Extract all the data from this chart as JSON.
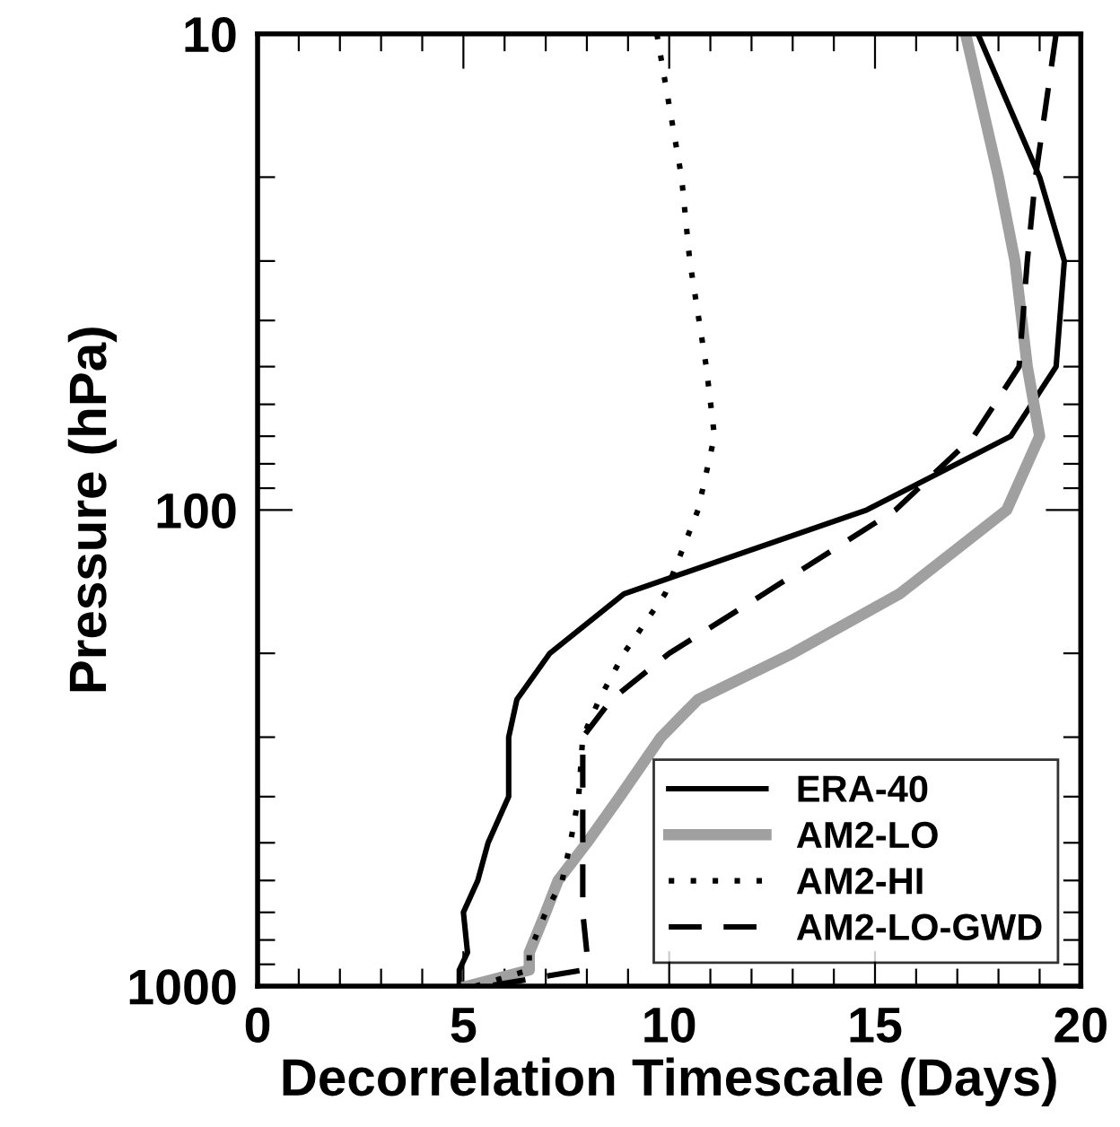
{
  "chart_data": {
    "type": "line",
    "xlabel": "Decorrelation Timescale (Days)",
    "ylabel": "Pressure (hPa)",
    "log": "y",
    "xlim": [
      0,
      20
    ],
    "ylim": [
      1000,
      10
    ],
    "xticks": [
      0,
      {
        "value": 1,
        "label": null
      },
      {
        "value": 2,
        "label": null
      },
      {
        "value": 3,
        "label": null
      },
      {
        "value": 4,
        "label": null
      },
      5,
      {
        "value": 6,
        "label": null
      },
      {
        "value": 7,
        "label": null
      },
      {
        "value": 8,
        "label": null
      },
      {
        "value": 9,
        "label": null
      },
      10,
      {
        "value": 11,
        "label": null
      },
      {
        "value": 12,
        "label": null
      },
      {
        "value": 13,
        "label": null
      },
      {
        "value": 14,
        "label": null
      },
      15,
      {
        "value": 16,
        "label": null
      },
      {
        "value": 17,
        "label": null
      },
      {
        "value": 18,
        "label": null
      },
      {
        "value": 19,
        "label": null
      },
      20
    ],
    "yticks": [
      10,
      {
        "value": 20,
        "label": null
      },
      {
        "value": 30,
        "label": null
      },
      {
        "value": 40,
        "label": null
      },
      {
        "value": 50,
        "label": null
      },
      {
        "value": 60,
        "label": null
      },
      {
        "value": 70,
        "label": null
      },
      {
        "value": 80,
        "label": null
      },
      {
        "value": 90,
        "label": null
      },
      100,
      {
        "value": 200,
        "label": null
      },
      {
        "value": 300,
        "label": null
      },
      {
        "value": 400,
        "label": null
      },
      {
        "value": 500,
        "label": null
      },
      {
        "value": 600,
        "label": null
      },
      {
        "value": 700,
        "label": null
      },
      {
        "value": 800,
        "label": null
      },
      {
        "value": 900,
        "label": null
      },
      1000
    ],
    "grid": false,
    "legend": "bottom right",
    "marker": "none",
    "series": [
      {
        "name": "ERA-40",
        "color": "#000000",
        "line_style": "solid",
        "x": [
          17.5,
          19.0,
          19.6,
          19.4,
          18.3,
          14.8,
          8.9,
          7.1,
          6.3,
          6.1,
          6.1,
          5.6,
          5.35,
          5.0,
          5.1,
          4.9,
          4.9
        ],
        "values": [
          10,
          20,
          30,
          50,
          70,
          100,
          150,
          200,
          250,
          300,
          400,
          500,
          600,
          700,
          850,
          925,
          1000
        ]
      },
      {
        "name": "AM2-LO",
        "color": "#a0a0a0",
        "line_style": "solid",
        "x": [
          17.2,
          18.0,
          18.4,
          18.7,
          19.0,
          18.2,
          15.6,
          13.0,
          10.7,
          9.8,
          8.8,
          8.0,
          7.3,
          7.0,
          6.6,
          6.6,
          5.1
        ],
        "values": [
          10,
          20,
          30,
          50,
          70,
          100,
          150,
          200,
          250,
          300,
          400,
          500,
          600,
          700,
          850,
          925,
          1000
        ]
      },
      {
        "name": "AM2-HI",
        "color": "#000000",
        "line_style": "dotted",
        "x": [
          9.7,
          10.3,
          10.5,
          10.9,
          11.1,
          10.7,
          9.9,
          8.9,
          8.3,
          7.9,
          7.8,
          7.6,
          7.4,
          7.0,
          6.6,
          6.6,
          5.3
        ],
        "values": [
          10,
          20,
          30,
          50,
          70,
          100,
          150,
          200,
          250,
          300,
          400,
          500,
          600,
          700,
          850,
          925,
          1000
        ]
      },
      {
        "name": "AM2-LO-GWD",
        "color": "#000000",
        "line_style": "dashed",
        "x": [
          19.4,
          18.9,
          18.7,
          18.5,
          17.4,
          15.5,
          12.3,
          10.0,
          8.6,
          7.9,
          7.9,
          7.9,
          7.9,
          7.9,
          8.0,
          7.9,
          5.6
        ],
        "values": [
          10,
          20,
          30,
          50,
          70,
          100,
          150,
          200,
          250,
          300,
          400,
          500,
          600,
          700,
          850,
          925,
          1000
        ]
      }
    ]
  }
}
